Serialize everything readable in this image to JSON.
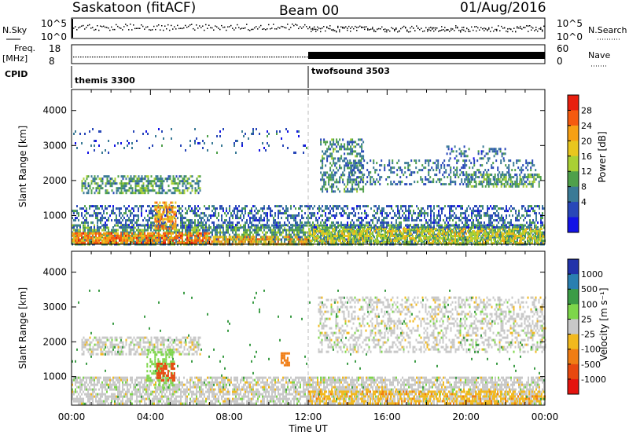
{
  "header": {
    "station": "Saskatoon (fitACF)",
    "beam": "Beam 00",
    "date": "01/Aug/2016"
  },
  "strip_labels": {
    "nsky": "N.Sky",
    "nsky_ticks": [
      "10^5",
      "10^0"
    ],
    "nsearch": "N.Search",
    "nsearch_ticks": [
      "10^5",
      "10^0"
    ],
    "freq": "Freq.",
    "freq_unit": "[MHz]",
    "freq_ticks": [
      "18",
      "8"
    ],
    "nave": "Nave",
    "nave_ticks": [
      "60",
      "0"
    ],
    "cpid": "CPID"
  },
  "cpid_modes": [
    {
      "name": "themis 3300",
      "start_hour": 0
    },
    {
      "name": "twofsound 3503",
      "start_hour": 12
    }
  ],
  "time_axis": {
    "label": "Time UT",
    "ticks": [
      "00:00",
      "04:00",
      "08:00",
      "12:00",
      "16:00",
      "20:00",
      "00:00"
    ]
  },
  "power_panel": {
    "ylabel": "Slant Range [km]",
    "yticks": [
      "4000",
      "3000",
      "2000",
      "1000"
    ],
    "colorbar_label": "Power [dB]",
    "colorbar_ticks": [
      "28",
      "24",
      "20",
      "16",
      "12",
      "8",
      "4"
    ],
    "colorbar_colors": [
      "#e81f0f",
      "#f55a0f",
      "#f7a014",
      "#e8c61e",
      "#a9d034",
      "#4fa04a",
      "#3a7a96",
      "#2847b8",
      "#1212e6"
    ]
  },
  "velocity_panel": {
    "ylabel": "Slant Range [km]",
    "yticks": [
      "4000",
      "3000",
      "2000",
      "1000"
    ],
    "colorbar_label": "Velocity [m s⁻¹]",
    "colorbar_ticks": [
      "1000",
      "500",
      "100",
      "25",
      "-25",
      "-100",
      "-500",
      "-1000"
    ],
    "colorbar_colors": [
      "#2233aa",
      "#2a7fb0",
      "#3c9c46",
      "#7dd64a",
      "#c8c8c8",
      "#f2b91e",
      "#f07d14",
      "#e8480f",
      "#e4140f"
    ]
  },
  "chart_data": {
    "type": "heatmap",
    "title": "Saskatoon (fitACF) Beam 00 01/Aug/2016",
    "xlabel": "Time UT",
    "ylabel": "Slant Range [km]",
    "xlim_hours": [
      0,
      24
    ],
    "ylim_km": [
      180,
      4600
    ],
    "yticks_km": [
      1000,
      2000,
      3000,
      4000
    ],
    "power_db_range": [
      0,
      30
    ],
    "velocity_range": [
      -1000,
      1000
    ],
    "power_regions": [
      {
        "t0": 0.0,
        "t1": 24.0,
        "r0": 200,
        "r1": 750,
        "db": 10,
        "density": 0.72
      },
      {
        "t0": 0.0,
        "t1": 7.0,
        "r0": 200,
        "r1": 520,
        "db": 24,
        "density": 0.75
      },
      {
        "t0": 7.0,
        "t1": 12.0,
        "r0": 200,
        "r1": 420,
        "db": 22,
        "density": 0.6
      },
      {
        "t0": 12.0,
        "t1": 24.0,
        "r0": 240,
        "r1": 650,
        "db": 17,
        "density": 0.55
      },
      {
        "t0": 0.0,
        "t1": 24.0,
        "r0": 650,
        "r1": 1300,
        "db": 6,
        "density": 0.45
      },
      {
        "t0": 0.5,
        "t1": 6.5,
        "r0": 1650,
        "r1": 2150,
        "db": 10,
        "density": 0.55
      },
      {
        "t0": 4.2,
        "t1": 5.3,
        "r0": 650,
        "r1": 1400,
        "db": 22,
        "density": 0.6
      },
      {
        "t0": 12.6,
        "t1": 14.8,
        "r0": 1700,
        "r1": 3200,
        "db": 9,
        "density": 0.45
      },
      {
        "t0": 14.0,
        "t1": 23.6,
        "r0": 1900,
        "r1": 2600,
        "db": 7,
        "density": 0.35
      },
      {
        "t0": 20.0,
        "t1": 23.8,
        "r0": 1800,
        "r1": 2200,
        "db": 11,
        "density": 0.5
      },
      {
        "t0": 19.0,
        "t1": 22.0,
        "r0": 2600,
        "r1": 3000,
        "db": 6,
        "density": 0.3
      },
      {
        "t0": 0.0,
        "t1": 12.0,
        "r0": 2800,
        "r1": 3500,
        "db": 5,
        "density": 0.06
      }
    ],
    "velocity_regions": [
      {
        "t0": 0.0,
        "t1": 24.0,
        "r0": 200,
        "r1": 1000,
        "vel": 0,
        "density": 0.7
      },
      {
        "t0": 12.0,
        "t1": 24.0,
        "r0": 200,
        "r1": 600,
        "vel": -80,
        "density": 0.5
      },
      {
        "t0": 0.5,
        "t1": 6.5,
        "r0": 1650,
        "r1": 2150,
        "vel": 0,
        "density": 0.55
      },
      {
        "t0": 12.5,
        "t1": 24.0,
        "r0": 1700,
        "r1": 3300,
        "vel": 0,
        "density": 0.4
      },
      {
        "t0": 3.8,
        "t1": 5.2,
        "r0": 700,
        "r1": 1800,
        "vel": 60,
        "density": 0.45
      },
      {
        "t0": 4.3,
        "t1": 5.2,
        "r0": 900,
        "r1": 1400,
        "vel": -700,
        "density": 0.55
      },
      {
        "t0": 10.6,
        "t1": 11.0,
        "r0": 1300,
        "r1": 1700,
        "vel": -300,
        "density": 0.6
      },
      {
        "t0": 0.0,
        "t1": 24.0,
        "r0": 200,
        "r1": 3500,
        "vel": 200,
        "density": 0.01
      }
    ]
  }
}
